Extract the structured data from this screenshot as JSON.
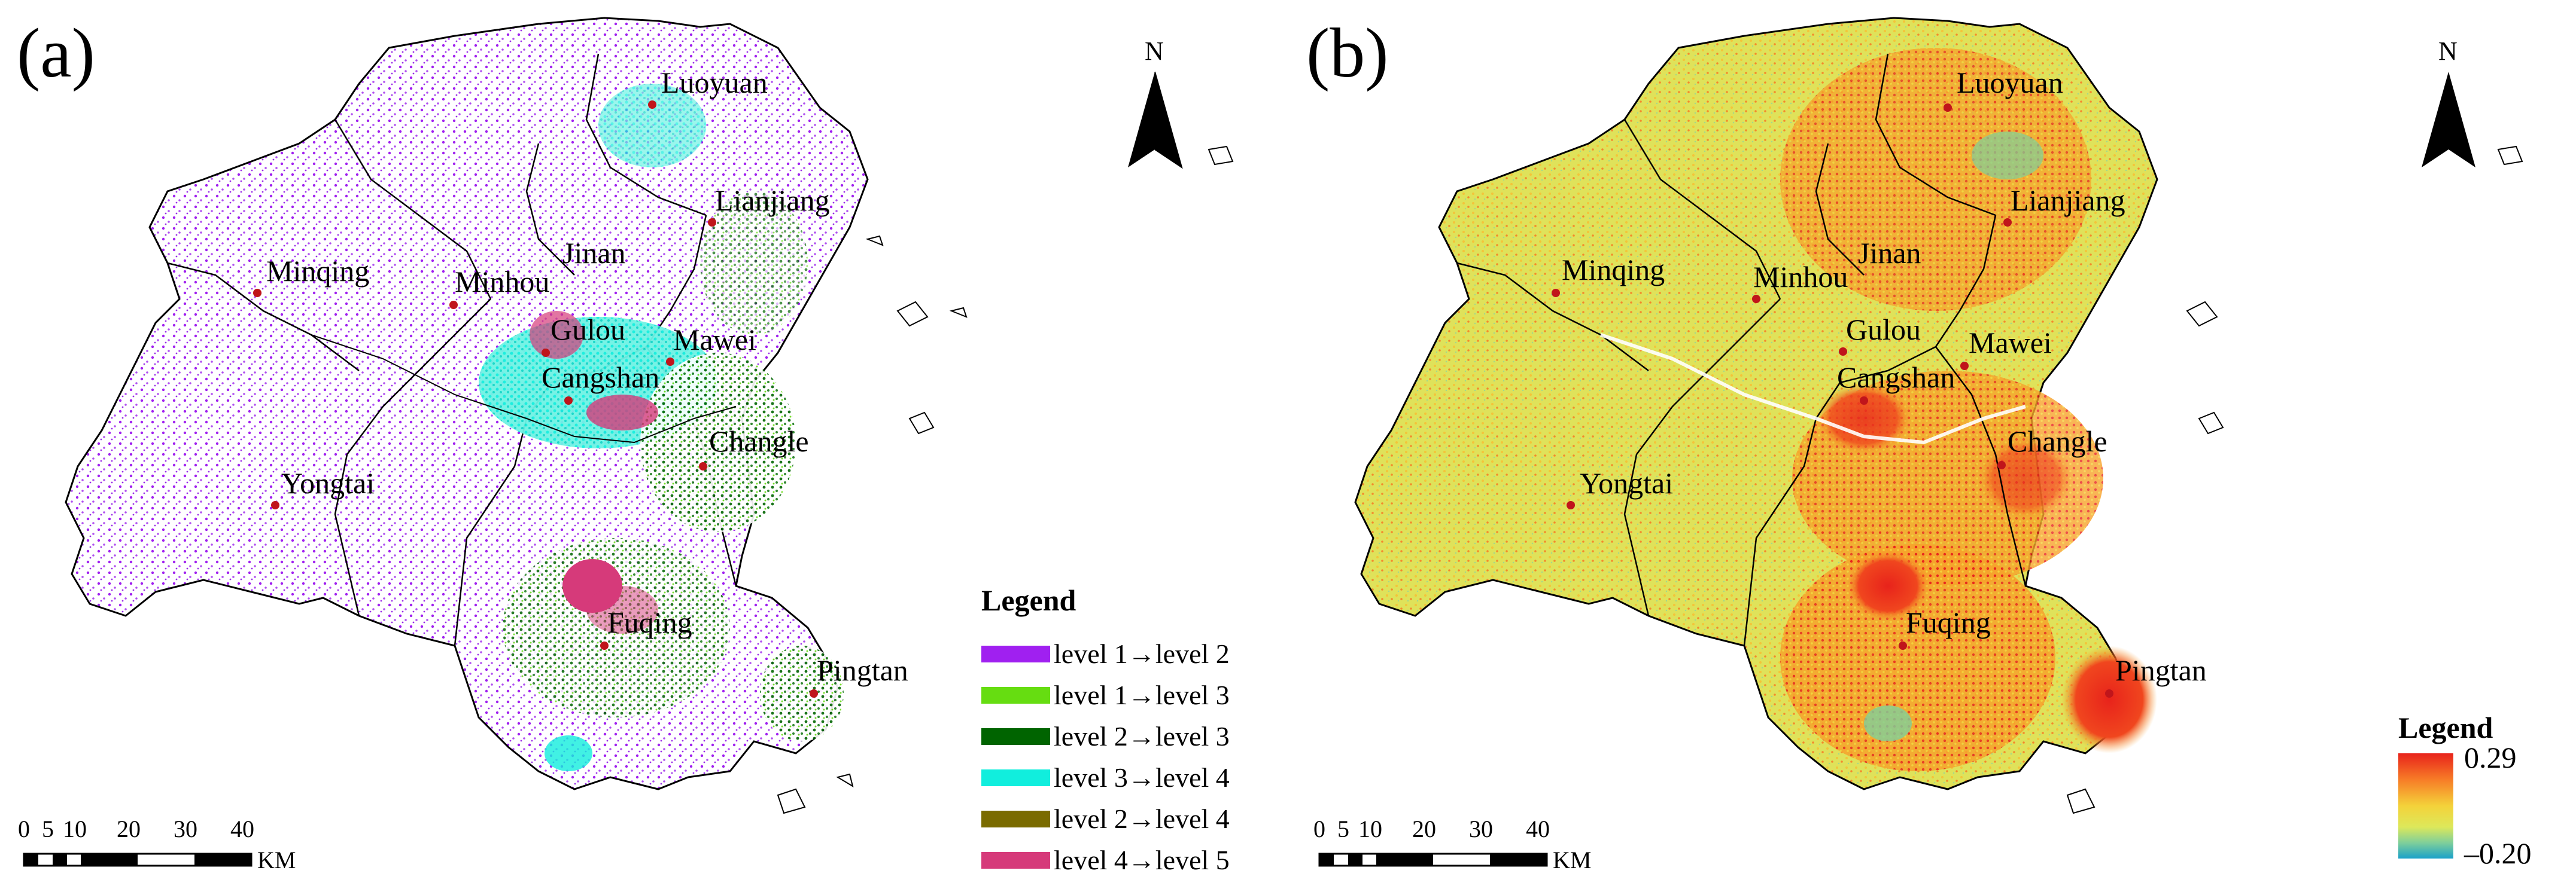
{
  "panels": [
    {
      "label": "(a)",
      "cities": [
        "Luoyuan",
        "Lianjiang",
        "Jinan",
        "Minqing",
        "Minhou",
        "Gulou",
        "Mawei",
        "Cangshan",
        "Changle",
        "Yongtai",
        "Fuqing",
        "Pingtan"
      ],
      "north": "N",
      "scale": {
        "ticks": [
          "0",
          "5",
          "10",
          "20",
          "30",
          "40"
        ],
        "unit": "KM"
      },
      "legend": {
        "title": "Legend",
        "items": [
          {
            "label": "level 1→level 2",
            "color": "#a020f0"
          },
          {
            "label": "level 1→level 3",
            "color": "#66dd11"
          },
          {
            "label": "level 2→level 3",
            "color": "#006400"
          },
          {
            "label": "level 3→level 4",
            "color": "#11eedd"
          },
          {
            "label": "level 2→level 4",
            "color": "#7a6b00"
          },
          {
            "label": "level 4→level 5",
            "color": "#d63a7a"
          }
        ]
      }
    },
    {
      "label": "(b)",
      "cities": [
        "Luoyuan",
        "Lianjiang",
        "Jinan",
        "Minqing",
        "Minhou",
        "Gulou",
        "Mawei",
        "Cangshan",
        "Changle",
        "Yongtai",
        "Fuqing",
        "Pingtan"
      ],
      "north": "N",
      "scale": {
        "ticks": [
          "0",
          "5",
          "10",
          "20",
          "30",
          "40"
        ],
        "unit": "KM"
      },
      "legend": {
        "title": "Legend",
        "max": "0.29",
        "min": "–0.20"
      }
    }
  ],
  "colors": {
    "boundary": "#000000",
    "city_marker": "#c0151b",
    "map_b_base": "#dfe25a",
    "map_b_high": "#e8231b",
    "map_b_mid": "#f7a22b",
    "map_b_low": "#1aa1c9"
  }
}
